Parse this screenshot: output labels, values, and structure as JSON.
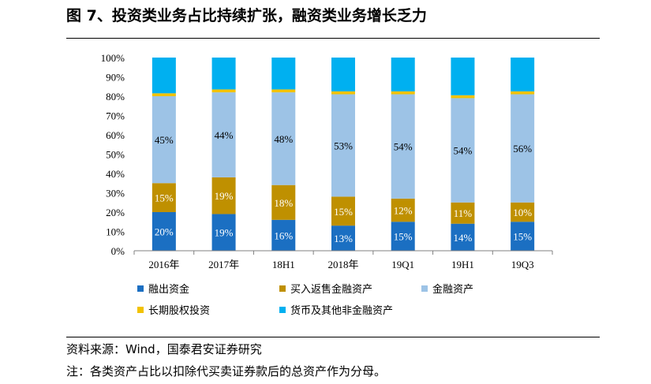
{
  "title": "图 7、投资类业务占比持续扩张，融资类业务增长乏力",
  "footer": {
    "source": "资料来源：Wind，国泰君安证券研究",
    "note": "注：各类资产占比以扣除代买卖证券款后的总资产作为分母。"
  },
  "colors": {
    "融出资金": "#1b6fc2",
    "买入返售金融资产": "#bf9000",
    "金融资产": "#9dc3e6",
    "长期股权投资": "#f2c200",
    "货币及其他非金融资产": "#00b0f0"
  },
  "chart_data": {
    "type": "bar",
    "stacked": true,
    "categories": [
      "2016年",
      "2017年",
      "18H1",
      "2018年",
      "19Q1",
      "19H1",
      "19Q3"
    ],
    "y_ticks": [
      "0%",
      "10%",
      "20%",
      "30%",
      "40%",
      "50%",
      "60%",
      "70%",
      "80%",
      "90%",
      "100%"
    ],
    "ylim": [
      0,
      100
    ],
    "legend_position": "bottom",
    "series": [
      {
        "name": "融出资金",
        "values": [
          20,
          19,
          16,
          13,
          15,
          14,
          15
        ],
        "labels": [
          "20%",
          "19%",
          "16%",
          "13%",
          "15%",
          "14%",
          "15%"
        ],
        "label_color": "#ffffff"
      },
      {
        "name": "买入返售金融资产",
        "values": [
          15,
          19,
          18,
          15,
          12,
          11,
          10
        ],
        "labels": [
          "15%",
          "19%",
          "18%",
          "15%",
          "12%",
          "11%",
          "10%"
        ],
        "label_color": "#ffffff"
      },
      {
        "name": "金融资产",
        "values": [
          45,
          44,
          48,
          53,
          54,
          54,
          56
        ],
        "labels": [
          "45%",
          "44%",
          "48%",
          "53%",
          "54%",
          "54%",
          "56%"
        ],
        "label_color": "#000000"
      },
      {
        "name": "长期股权投资",
        "values": [
          1.5,
          1.5,
          1.5,
          1.5,
          1.5,
          1.5,
          1.5
        ]
      },
      {
        "name": "货币及其他非金融资产",
        "values": [
          18.5,
          16.5,
          16.5,
          17.5,
          17.5,
          19.5,
          17.5
        ]
      }
    ]
  }
}
